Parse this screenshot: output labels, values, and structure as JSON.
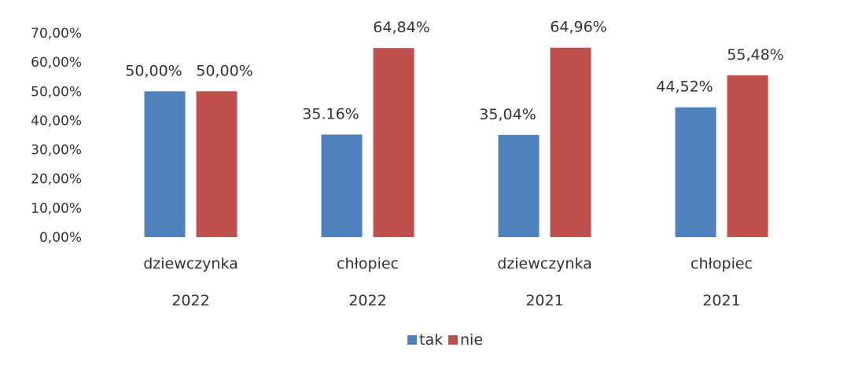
{
  "chart_data": {
    "type": "bar",
    "categories": [
      [
        "dziewczynka",
        "2022"
      ],
      [
        "chłopiec",
        "2022"
      ],
      [
        "dziewczynka",
        "2021"
      ],
      [
        "chłopiec",
        "2021"
      ]
    ],
    "series": [
      {
        "name": "tak",
        "color": "#4f81bd",
        "values": [
          50.0,
          35.16,
          35.04,
          44.52
        ],
        "value_labels": [
          "50,00%",
          "35.16%",
          "35,04%",
          "44,52%"
        ]
      },
      {
        "name": "nie",
        "color": "#c0504d",
        "values": [
          50.0,
          64.84,
          64.96,
          55.48
        ],
        "value_labels": [
          "50,00%",
          "64,84%",
          "64,96%",
          "55,48%"
        ]
      }
    ],
    "ylim": [
      0,
      70
    ],
    "yticks": [
      {
        "value": 0,
        "label": "0,00%"
      },
      {
        "value": 10,
        "label": "10,00%"
      },
      {
        "value": 20,
        "label": "20,00%"
      },
      {
        "value": 30,
        "label": "30,00%"
      },
      {
        "value": 40,
        "label": "40,00%"
      },
      {
        "value": 50,
        "label": "50,00%"
      },
      {
        "value": 60,
        "label": "60,00%"
      },
      {
        "value": 70,
        "label": "70,00%"
      }
    ],
    "title": "",
    "xlabel": "",
    "ylabel": "",
    "grid": false,
    "legend_position": "bottom"
  }
}
